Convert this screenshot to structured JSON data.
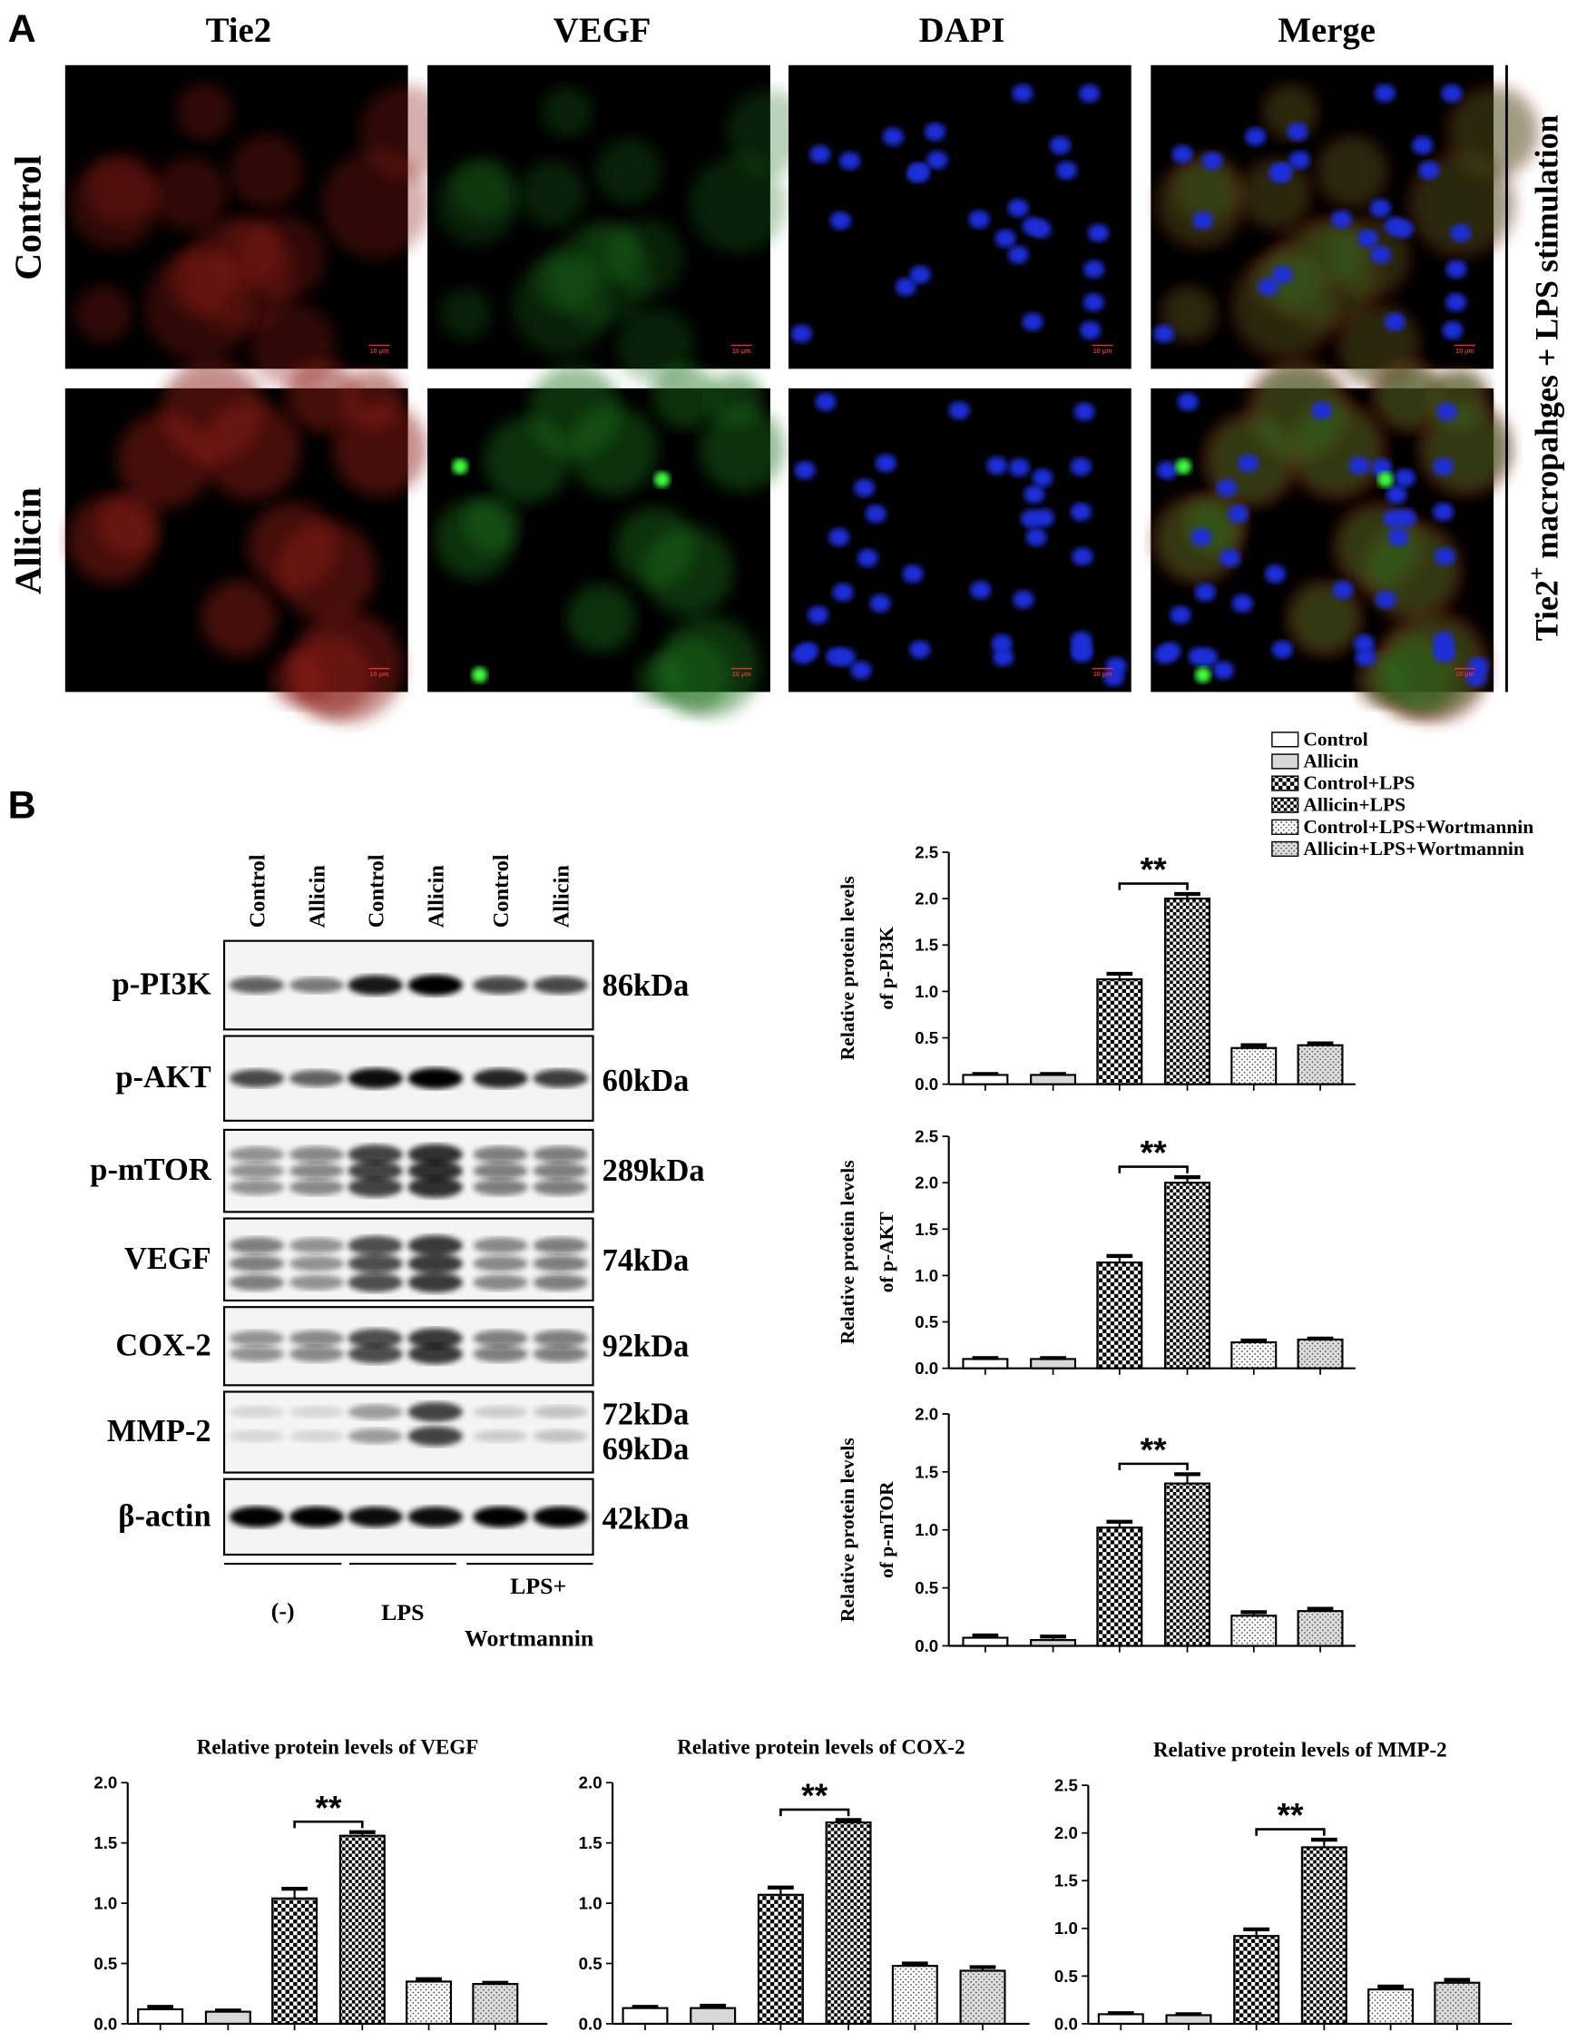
{
  "panel_a": {
    "label": "A",
    "columns": [
      "Tie2",
      "VEGF",
      "DAPI",
      "Merge"
    ],
    "rows": [
      "Control",
      "Allicin"
    ],
    "scale_bar": "10 μm",
    "side_label": {
      "main": "Tie2",
      "superscript": "+",
      "rest": "macropahges + LPS stimulation"
    }
  },
  "panel_b": {
    "label": "B",
    "lanes": [
      "Control",
      "Allicin",
      "Control",
      "Allicin",
      "Control",
      "Allicin"
    ],
    "blots": [
      {
        "name": "p-PI3K",
        "sizes": [
          "86kDa"
        ]
      },
      {
        "name": "p-AKT",
        "sizes": [
          "60kDa"
        ]
      },
      {
        "name": "p-mTOR",
        "sizes": [
          "289kDa"
        ]
      },
      {
        "name": "VEGF",
        "sizes": [
          "74kDa"
        ]
      },
      {
        "name": "COX-2",
        "sizes": [
          "92kDa"
        ]
      },
      {
        "name": "MMP-2",
        "sizes": [
          "72kDa",
          "69kDa"
        ]
      },
      {
        "name": "β-actin",
        "sizes": [
          "42kDa"
        ]
      }
    ],
    "groups": [
      [
        "(-)"
      ],
      [
        "LPS"
      ],
      [
        "LPS+",
        "Wortmannin"
      ]
    ]
  },
  "legend": {
    "names": [
      "Control",
      "Allicin",
      "Control+LPS",
      "Allicin+LPS",
      "Control+LPS+Wortmannin",
      "Allicin+LPS+Wortmannin"
    ],
    "fills": [
      "white",
      "lightgray",
      "checker",
      "checker-fine",
      "dots",
      "dots-gray"
    ]
  },
  "chart_data": [
    {
      "type": "bar",
      "ylabel": [
        "Relative protein levels",
        "of p-PI3K"
      ],
      "categories": [
        null,
        null,
        null,
        null,
        null,
        null
      ],
      "values": [
        0.1,
        0.1,
        1.13,
        2.0,
        0.39,
        0.42
      ],
      "errors": [
        0.01,
        0.01,
        0.06,
        0.05,
        0.03,
        0.02
      ],
      "annotation": "**",
      "ylim": [
        0,
        2.5
      ],
      "yticks": [
        {
          "value": 0,
          "label": "0.0"
        },
        0.5,
        {
          "value": 1,
          "label": "1.0"
        },
        1.5,
        {
          "value": 2,
          "label": "2.0"
        },
        2.5
      ]
    },
    {
      "type": "bar",
      "ylabel": [
        "Relative protein levels",
        "of p-AKT"
      ],
      "categories": [
        null,
        null,
        null,
        null,
        null,
        null
      ],
      "values": [
        0.1,
        0.1,
        1.14,
        2.0,
        0.28,
        0.31
      ],
      "errors": [
        0.01,
        0.01,
        0.07,
        0.06,
        0.02,
        0.01
      ],
      "annotation": "**",
      "ylim": [
        0,
        2.5
      ],
      "yticks": [
        {
          "value": 0,
          "label": "0.0"
        },
        0.5,
        {
          "value": 1,
          "label": "1.0"
        },
        1.5,
        {
          "value": 2,
          "label": "2.0"
        },
        2.5
      ]
    },
    {
      "type": "bar",
      "ylabel": [
        "Relative protein levels",
        "of p-mTOR"
      ],
      "categories": [
        null,
        null,
        null,
        null,
        null,
        null
      ],
      "values": [
        0.07,
        0.05,
        1.02,
        1.4,
        0.26,
        0.3
      ],
      "errors": [
        0.02,
        0.03,
        0.05,
        0.08,
        0.03,
        0.02
      ],
      "annotation": "**",
      "ylim": [
        0,
        2
      ],
      "yticks": [
        {
          "value": 0,
          "label": "0.0"
        },
        0.5,
        {
          "value": 1,
          "label": "1.0"
        },
        1.5,
        {
          "value": 2,
          "label": "2.0"
        }
      ]
    },
    {
      "type": "bar",
      "title": "Relative protein levels of VEGF",
      "categories": [
        null,
        null,
        null,
        null,
        null,
        null
      ],
      "values": [
        0.12,
        0.1,
        1.04,
        1.56,
        0.35,
        0.33
      ],
      "errors": [
        0.02,
        0.01,
        0.08,
        0.03,
        0.02,
        0.01
      ],
      "annotation": "**",
      "ylim": [
        0,
        2
      ],
      "yticks": [
        {
          "value": 0,
          "label": "0.0"
        },
        0.5,
        {
          "value": 1,
          "label": "1.0"
        },
        1.5,
        {
          "value": 2,
          "label": "2.0"
        }
      ]
    },
    {
      "type": "bar",
      "title": "Relative protein levels of COX-2",
      "categories": [
        null,
        null,
        null,
        null,
        null,
        null
      ],
      "values": [
        0.13,
        0.13,
        1.07,
        1.67,
        0.48,
        0.44
      ],
      "errors": [
        0.01,
        0.02,
        0.06,
        0.02,
        0.02,
        0.03
      ],
      "annotation": "**",
      "ylim": [
        0,
        2
      ],
      "yticks": [
        {
          "value": 0,
          "label": "0.0"
        },
        0.5,
        {
          "value": 1,
          "label": "1.0"
        },
        1.5,
        {
          "value": 2,
          "label": "2.0"
        }
      ]
    },
    {
      "type": "bar",
      "title": "Relative protein levels of MMP-2",
      "categories": [
        null,
        null,
        null,
        null,
        null,
        null
      ],
      "values": [
        0.1,
        0.09,
        0.92,
        1.85,
        0.36,
        0.43
      ],
      "errors": [
        0.01,
        0.01,
        0.07,
        0.08,
        0.03,
        0.03
      ],
      "annotation": "**",
      "ylim": [
        0,
        2.5
      ],
      "yticks": [
        {
          "value": 0,
          "label": "0.0"
        },
        0.5,
        {
          "value": 1,
          "label": "1.0"
        },
        1.5,
        {
          "value": 2,
          "label": "2.0"
        },
        2.5
      ]
    }
  ]
}
